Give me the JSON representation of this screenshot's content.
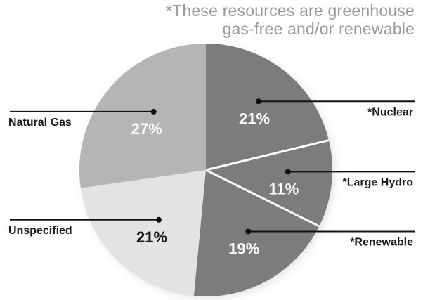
{
  "note": {
    "line1": "*These resources are greenhouse",
    "line2": "gas-free and/or renewable"
  },
  "chart_data": {
    "type": "pie",
    "title": "",
    "start_angle_deg": 0,
    "direction": "clockwise",
    "slices": [
      {
        "key": "nuclear",
        "label": "*Nuclear",
        "value": 21,
        "value_label": "21%",
        "color": "#7c7c7c",
        "value_color": "#ffffff"
      },
      {
        "key": "large-hydro",
        "label": "*Large Hydro",
        "value": 11,
        "value_label": "11%",
        "color": "#7c7c7c",
        "value_color": "#ffffff"
      },
      {
        "key": "renewable",
        "label": "*Renewable",
        "value": 19,
        "value_label": "19%",
        "color": "#7c7c7c",
        "value_color": "#ffffff"
      },
      {
        "key": "unspecified",
        "label": "Unspecified",
        "value": 21,
        "value_label": "21%",
        "color": "#e3e3e3",
        "value_color": "#1a1a1a"
      },
      {
        "key": "natural-gas",
        "label": "Natural Gas",
        "value": 27,
        "value_label": "27%",
        "color": "#b5b5b5",
        "value_color": "#ffffff"
      }
    ],
    "separator_color": "#ffffff",
    "legend": "callout-lines"
  }
}
